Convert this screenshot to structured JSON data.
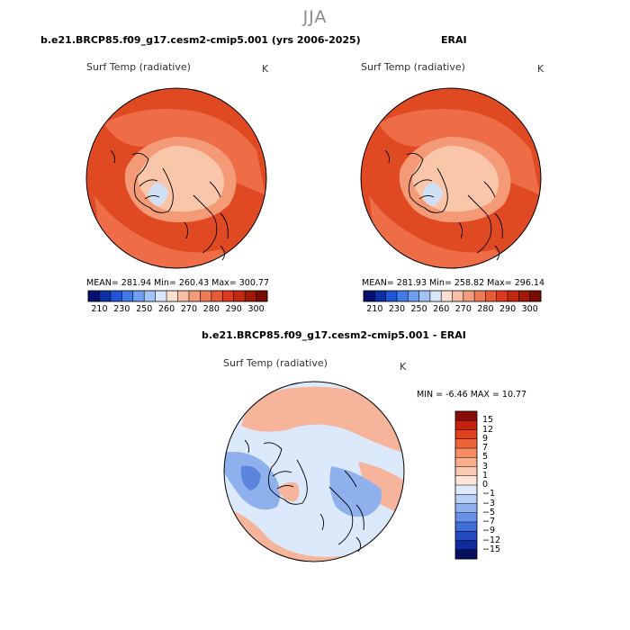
{
  "figure": {
    "season": "JJA",
    "variable": "Surf Temp (radiative)",
    "units": "K"
  },
  "panels": [
    {
      "title": "b.e21.BRCP85.f09_g17.cesm2-cmip5.001 (yrs 2006-2025)",
      "stats": {
        "mean": "281.94",
        "min": "260.43",
        "max": "300.77"
      },
      "stats_text": "MEAN= 281.94   Min= 260.43   Max= 300.77"
    },
    {
      "title": "ERAI",
      "stats": {
        "mean": "281.93",
        "min": "258.82",
        "max": "296.14"
      },
      "stats_text": "MEAN= 281.93   Min= 258.82   Max= 296.14"
    },
    {
      "title": "b.e21.BRCP85.f09_g17.cesm2-cmip5.001 - ERAI",
      "stats": {
        "min": "-6.46",
        "max": "10.77"
      },
      "stats_text": "MIN =   -6.46 MAX =  10.77"
    }
  ],
  "abs_colorbar": {
    "labels": [
      "210",
      "230",
      "250",
      "260",
      "270",
      "280",
      "290",
      "300"
    ],
    "colors": [
      "#08106e",
      "#0b2fa5",
      "#1f55d6",
      "#3f7ae6",
      "#6f9df0",
      "#a4c3f5",
      "#d8e6fb",
      "#fbe0d0",
      "#f7c0a6",
      "#f29c7c",
      "#ee7b58",
      "#e85a36",
      "#db3b1c",
      "#c32912",
      "#a01806",
      "#7a0c04"
    ]
  },
  "diff_colorbar": {
    "labels": [
      "15",
      "12",
      "9",
      "7",
      "5",
      "3",
      "1",
      "0",
      "−1",
      "−3",
      "−5",
      "−7",
      "−9",
      "−12",
      "−15"
    ],
    "colors": [
      "#8a0c06",
      "#c4220f",
      "#e0411c",
      "#ef6436",
      "#f58c63",
      "#f8ad8c",
      "#fac9b2",
      "#fde6d8",
      "#dfeafb",
      "#b9d0f6",
      "#8fb2ef",
      "#6890e6",
      "#416dd9",
      "#2449c0",
      "#0f2a9a",
      "#06105e"
    ]
  },
  "map_colors": {
    "warm_dark": "#e04a23",
    "warm_mid": "#ee6d47",
    "warm_light": "#f49a76",
    "arctic": "#f9c6aa",
    "ice": "#cfe0f6",
    "diff_bg": "#dce9fb",
    "diff_warm": "#f6b49b",
    "diff_cool": "#8eb1ee",
    "diff_cold": "#5c86de"
  }
}
